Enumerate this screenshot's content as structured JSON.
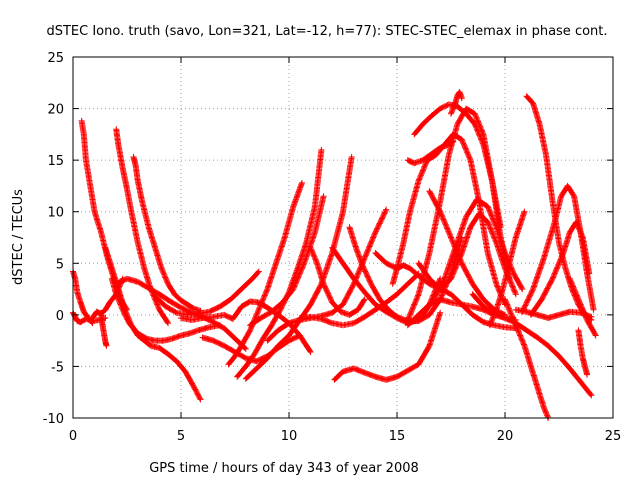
{
  "chart_data": {
    "type": "scatter",
    "title": "dSTEC Iono. truth (savo, Lon=321, Lat=-12, h=77): STEC-STEC_elemax in phase cont.",
    "xlabel": "GPS time / hours of day 343 of year 2008",
    "ylabel": "dSTEC  / TECUs",
    "xlim": [
      0,
      25
    ],
    "ylim": [
      -10,
      25
    ],
    "xticks": [
      0,
      5,
      10,
      15,
      20,
      25
    ],
    "yticks": [
      -10,
      -5,
      0,
      5,
      10,
      15,
      20,
      25
    ],
    "xtick_labels": [
      "0",
      "5",
      "10",
      "15",
      "20",
      "25"
    ],
    "ytick_labels": [
      "-10",
      "-5",
      "0",
      "5",
      "10",
      "15",
      "20",
      "25"
    ],
    "grid": true,
    "marker": "plus",
    "color": "#ff0000",
    "series": [
      {
        "x": [
          0.0,
          0.1,
          0.2,
          0.35,
          0.5,
          0.7,
          0.9
        ],
        "y": [
          4.2,
          3.5,
          2.2,
          1.2,
          0.3,
          -0.3,
          -0.8
        ]
      },
      {
        "x": [
          0.0,
          0.1,
          0.2,
          0.35,
          0.6,
          0.9,
          1.2,
          1.5
        ],
        "y": [
          0.2,
          -0.2,
          -0.6,
          -0.7,
          -0.4,
          -0.6,
          -0.5,
          -0.3
        ]
      },
      {
        "x": [
          0.4,
          0.5,
          0.6,
          0.8,
          1.0,
          1.3,
          1.6,
          1.9,
          2.2,
          2.5
        ],
        "y": [
          18.8,
          17.5,
          15.0,
          12.5,
          10.0,
          8.0,
          5.5,
          3.5,
          1.5,
          0.5
        ]
      },
      {
        "x": [
          0.9,
          1.1,
          1.3,
          1.5,
          1.7,
          2.0,
          2.3
        ],
        "y": [
          -0.3,
          0.3,
          0.1,
          0.5,
          1.2,
          2.0,
          3.5
        ]
      },
      {
        "x": [
          1.3,
          1.35,
          1.4,
          1.45,
          1.5,
          1.55
        ],
        "y": [
          0.2,
          -0.7,
          -1.4,
          -2.0,
          -2.6,
          -3.0
        ]
      },
      {
        "x": [
          2.0,
          2.1,
          2.3,
          2.5,
          2.7,
          3.0,
          3.3,
          3.6,
          4.0,
          4.4
        ],
        "y": [
          18.0,
          16.5,
          14.2,
          12.2,
          10.0,
          7.0,
          4.5,
          2.5,
          0.5,
          -0.8
        ]
      },
      {
        "x": [
          1.5,
          1.8,
          2.1,
          2.4,
          2.7,
          3.0,
          3.3,
          3.6,
          4.0,
          4.4,
          4.8,
          5.2,
          5.6,
          5.9
        ],
        "y": [
          6.5,
          4.5,
          2.5,
          0.5,
          -1.0,
          -2.0,
          -2.5,
          -3.0,
          -3.2,
          -3.8,
          -4.5,
          -5.5,
          -7.0,
          -8.2
        ]
      },
      {
        "x": [
          2.8,
          2.9,
          3.0,
          3.2,
          3.5,
          3.8,
          4.1,
          4.4,
          4.7,
          5.0,
          5.3,
          5.6,
          5.9
        ],
        "y": [
          15.3,
          14.5,
          13.0,
          11.0,
          8.5,
          6.5,
          4.5,
          3.0,
          2.0,
          1.4,
          1.0,
          0.6,
          0.4
        ]
      },
      {
        "x": [
          1.8,
          2.0,
          2.3,
          2.6,
          3.0,
          3.4,
          3.8,
          4.2,
          4.6,
          5.0,
          5.4,
          5.8,
          6.3,
          6.8
        ],
        "y": [
          3.5,
          2.0,
          0.5,
          -0.8,
          -1.8,
          -2.3,
          -2.5,
          -2.5,
          -2.3,
          -2.0,
          -1.8,
          -1.5,
          -1.2,
          -1.0
        ]
      },
      {
        "x": [
          2.0,
          2.5,
          3.0,
          3.5,
          4.0,
          4.5,
          5.0,
          5.5,
          6.0,
          6.5,
          7.0,
          7.5,
          8.0
        ],
        "y": [
          3.0,
          3.5,
          3.2,
          2.6,
          2.0,
          1.3,
          0.7,
          0.2,
          -0.2,
          -0.7,
          -1.3,
          -2.3,
          -3.3
        ]
      },
      {
        "x": [
          3.8,
          4.3,
          4.8,
          5.3,
          5.8,
          6.3,
          6.8,
          7.3,
          7.8,
          8.3,
          8.6
        ],
        "y": [
          1.8,
          0.8,
          0.2,
          0.0,
          0.1,
          0.3,
          0.8,
          1.5,
          2.5,
          3.5,
          4.2
        ]
      },
      {
        "x": [
          5.0,
          5.5,
          6.0,
          6.5,
          7.0,
          7.4,
          7.8,
          8.2,
          8.6,
          9.0,
          9.5,
          10.0,
          10.5,
          11.0
        ],
        "y": [
          -0.3,
          -0.5,
          -0.3,
          -0.2,
          0.0,
          -0.4,
          0.8,
          1.3,
          1.2,
          0.7,
          0.0,
          -0.8,
          -2.0,
          -3.6
        ]
      },
      {
        "x": [
          6.0,
          6.5,
          7.0,
          7.5,
          8.0,
          8.5,
          9.0,
          9.5,
          10.0,
          10.5
        ],
        "y": [
          -2.2,
          -2.5,
          -3.0,
          -3.6,
          -4.2,
          -4.5,
          -4.0,
          -3.2,
          -2.5,
          -2.0
        ]
      },
      {
        "x": [
          7.2,
          7.5,
          7.8,
          8.2,
          8.6,
          9.0,
          9.4,
          9.8,
          10.2,
          10.6
        ],
        "y": [
          -4.8,
          -4.0,
          -3.0,
          -1.5,
          0.5,
          2.5,
          5.0,
          7.5,
          10.5,
          12.8
        ]
      },
      {
        "x": [
          7.6,
          8.0,
          8.4,
          8.8,
          9.2,
          9.6,
          10.0,
          10.4,
          10.8,
          11.2,
          11.5
        ],
        "y": [
          -6.0,
          -5.0,
          -3.8,
          -2.3,
          -1.0,
          0.5,
          2.2,
          4.5,
          7.0,
          10.5,
          16.0
        ]
      },
      {
        "x": [
          8.0,
          8.5,
          9.0,
          9.5,
          10.0,
          10.5,
          11.0,
          11.5,
          12.0,
          12.5,
          12.9
        ],
        "y": [
          -6.2,
          -5.2,
          -4.2,
          -3.0,
          -2.0,
          -0.5,
          1.0,
          3.0,
          6.0,
          10.0,
          15.3
        ]
      },
      {
        "x": [
          8.2,
          8.7,
          9.2,
          9.7,
          10.2,
          10.7,
          11.2,
          11.6
        ],
        "y": [
          -1.0,
          -0.3,
          0.3,
          1.2,
          2.5,
          5.0,
          8.0,
          11.5
        ]
      },
      {
        "x": [
          9.0,
          9.5,
          10.0,
          10.5,
          11.0,
          11.5,
          12.0,
          12.5,
          13.0,
          13.5,
          14.0,
          14.5
        ],
        "y": [
          -2.5,
          -1.5,
          -0.8,
          -0.5,
          -0.3,
          -0.1,
          0.2,
          1.0,
          3.0,
          5.5,
          8.0,
          10.2
        ]
      },
      {
        "x": [
          11.0,
          11.3,
          11.6,
          12.0,
          12.4,
          12.8,
          13.2,
          13.5
        ],
        "y": [
          6.5,
          5.0,
          3.0,
          1.2,
          0.3,
          0.0,
          0.5,
          1.5
        ]
      },
      {
        "x": [
          10.5,
          11.0,
          11.5,
          12.0,
          12.5,
          13.0,
          13.5,
          14.0,
          14.5,
          15.0,
          15.5,
          16.0
        ],
        "y": [
          -0.3,
          -0.2,
          -0.4,
          -0.8,
          -1.0,
          -0.8,
          -0.2,
          0.5,
          1.2,
          2.0,
          3.0,
          4.0
        ]
      },
      {
        "x": [
          12.0,
          12.5,
          13.0,
          13.5,
          14.0,
          14.5,
          15.0,
          15.5,
          16.0,
          16.5,
          17.0
        ],
        "y": [
          6.5,
          5.0,
          3.5,
          2.2,
          1.0,
          0.3,
          -0.3,
          -0.8,
          -0.5,
          1.0,
          3.5
        ]
      },
      {
        "x": [
          12.8,
          13.1,
          13.4,
          13.8,
          14.2,
          14.6,
          15.0,
          15.5,
          16.0,
          16.5,
          17.0,
          17.5,
          18.0
        ],
        "y": [
          8.5,
          6.5,
          4.8,
          3.0,
          1.5,
          0.5,
          -0.2,
          -0.6,
          -0.6,
          0.0,
          1.5,
          4.0,
          7.5
        ]
      },
      {
        "x": [
          12.1,
          12.5,
          13.0,
          13.5,
          14.0,
          14.5,
          15.0,
          15.5,
          16.0,
          16.5,
          17.0
        ],
        "y": [
          -6.3,
          -5.5,
          -5.2,
          -5.6,
          -6.0,
          -6.3,
          -6.0,
          -5.4,
          -4.8,
          -3.0,
          0.2
        ]
      },
      {
        "x": [
          14.0,
          14.5,
          15.0,
          15.3,
          15.6,
          16.0,
          16.5,
          17.0,
          17.5,
          18.0,
          18.5,
          19.0,
          19.5,
          20.0,
          20.5
        ],
        "y": [
          6.0,
          5.0,
          4.5,
          4.8,
          4.5,
          3.8,
          3.0,
          2.5,
          2.0,
          1.0,
          0.0,
          -0.7,
          -1.0,
          -1.2,
          -1.3
        ]
      },
      {
        "x": [
          14.8,
          15.0,
          15.3,
          15.6,
          16.0,
          16.4,
          16.8,
          17.2,
          17.6,
          18.0,
          18.4,
          18.8,
          19.2,
          19.6,
          20.0
        ],
        "y": [
          3.0,
          4.5,
          7.0,
          10.0,
          13.0,
          15.0,
          15.5,
          16.5,
          17.5,
          17.0,
          15.0,
          11.0,
          6.0,
          3.0,
          1.0
        ]
      },
      {
        "x": [
          15.5,
          16.0,
          16.5,
          17.0,
          17.4,
          17.8,
          18.2,
          18.6,
          19.0,
          19.4,
          19.8,
          20.2
        ],
        "y": [
          -0.5,
          2.0,
          6.0,
          11.0,
          15.5,
          18.5,
          20.0,
          19.5,
          17.5,
          13.0,
          7.5,
          3.5
        ]
      },
      {
        "x": [
          15.8,
          16.2,
          16.6,
          17.0,
          17.4,
          17.8,
          18.2,
          18.6,
          19.0,
          19.4,
          19.8
        ],
        "y": [
          17.5,
          18.5,
          19.3,
          20.0,
          20.4,
          20.2,
          19.5,
          18.5,
          16.5,
          13.0,
          8.5
        ]
      },
      {
        "x": [
          15.5,
          15.8,
          16.2,
          16.6,
          17.0,
          17.4,
          17.6
        ],
        "y": [
          15.0,
          14.7,
          15.0,
          15.6,
          16.2,
          16.5,
          16.8
        ]
      },
      {
        "x": [
          16.5,
          17.0,
          17.5,
          18.0,
          18.5,
          19.0,
          19.5,
          20.0
        ],
        "y": [
          12.0,
          10.0,
          7.5,
          5.0,
          3.0,
          1.5,
          0.5,
          0.0
        ]
      },
      {
        "x": [
          16.0,
          16.5,
          17.0,
          17.5,
          18.0,
          18.4,
          18.8,
          19.2,
          19.6,
          20.0,
          20.5
        ],
        "y": [
          5.0,
          3.5,
          2.5,
          3.5,
          6.0,
          8.5,
          9.8,
          9.0,
          7.0,
          4.5,
          2.0
        ]
      },
      {
        "x": [
          16.2,
          16.7,
          17.2,
          17.7,
          18.2,
          18.7,
          19.2,
          19.6,
          20.0,
          20.4,
          20.8
        ],
        "y": [
          0.0,
          1.5,
          3.5,
          6.5,
          9.5,
          11.2,
          10.5,
          8.5,
          6.0,
          4.0,
          2.5
        ]
      },
      {
        "x": [
          15.5,
          16.0,
          16.5,
          17.0,
          17.5,
          18.0,
          18.5,
          19.0,
          19.5,
          20.0,
          20.5
        ],
        "y": [
          -1.0,
          0.0,
          1.0,
          1.5,
          1.2,
          1.0,
          0.8,
          0.5,
          0.0,
          -0.3,
          -0.5
        ]
      },
      {
        "x": [
          17.5,
          17.7,
          17.8,
          17.9,
          18.0
        ],
        "y": [
          19.5,
          20.5,
          21.3,
          21.6,
          21.0
        ]
      },
      {
        "x": [
          18.5,
          19.0,
          19.5,
          20.0,
          20.5,
          21.0,
          21.5,
          22.0,
          22.5,
          23.0,
          23.5,
          24.0
        ],
        "y": [
          2.0,
          0.8,
          0.2,
          -0.3,
          -0.8,
          -1.5,
          -2.2,
          -3.0,
          -4.0,
          -5.2,
          -6.5,
          -7.8
        ]
      },
      {
        "x": [
          20.0,
          20.3,
          20.6,
          20.9,
          21.2,
          21.5,
          21.8,
          22.0
        ],
        "y": [
          1.5,
          0.0,
          -1.5,
          -3.0,
          -5.0,
          -7.0,
          -9.0,
          -10.0
        ]
      },
      {
        "x": [
          19.3,
          19.6,
          19.9,
          20.2,
          20.5,
          20.9
        ],
        "y": [
          -1.0,
          0.5,
          2.5,
          5.0,
          7.5,
          10.0
        ]
      },
      {
        "x": [
          21.0,
          21.3,
          21.6,
          21.9,
          22.2,
          22.5,
          22.8,
          23.1,
          23.4,
          23.7,
          24.0
        ],
        "y": [
          21.2,
          20.5,
          18.5,
          15.5,
          11.0,
          7.0,
          4.5,
          2.5,
          1.0,
          0.0,
          -0.5
        ]
      },
      {
        "x": [
          20.8,
          21.3,
          21.8,
          22.3,
          22.6,
          22.9,
          23.2,
          23.5,
          23.8,
          24.1
        ],
        "y": [
          0.3,
          2.5,
          5.5,
          9.0,
          11.5,
          12.5,
          11.5,
          8.0,
          4.0,
          0.5
        ]
      },
      {
        "x": [
          21.2,
          21.7,
          22.2,
          22.7,
          23.0,
          23.3,
          23.6,
          23.9
        ],
        "y": [
          0.0,
          1.5,
          3.5,
          6.0,
          8.0,
          9.0,
          7.5,
          4.0
        ]
      },
      {
        "x": [
          20.5,
          21.0,
          21.5,
          22.0,
          22.5,
          23.0,
          23.5,
          24.0
        ],
        "y": [
          0.5,
          0.3,
          0.0,
          -0.3,
          0.0,
          0.3,
          0.2,
          -0.2
        ]
      },
      {
        "x": [
          23.4,
          23.5,
          23.6,
          23.7,
          23.8
        ],
        "y": [
          -1.5,
          -3.0,
          -4.2,
          -5.0,
          -5.8
        ]
      },
      {
        "x": [
          23.0,
          23.4,
          23.8,
          24.2
        ],
        "y": [
          3.5,
          1.5,
          -0.5,
          -2.0
        ]
      }
    ]
  }
}
